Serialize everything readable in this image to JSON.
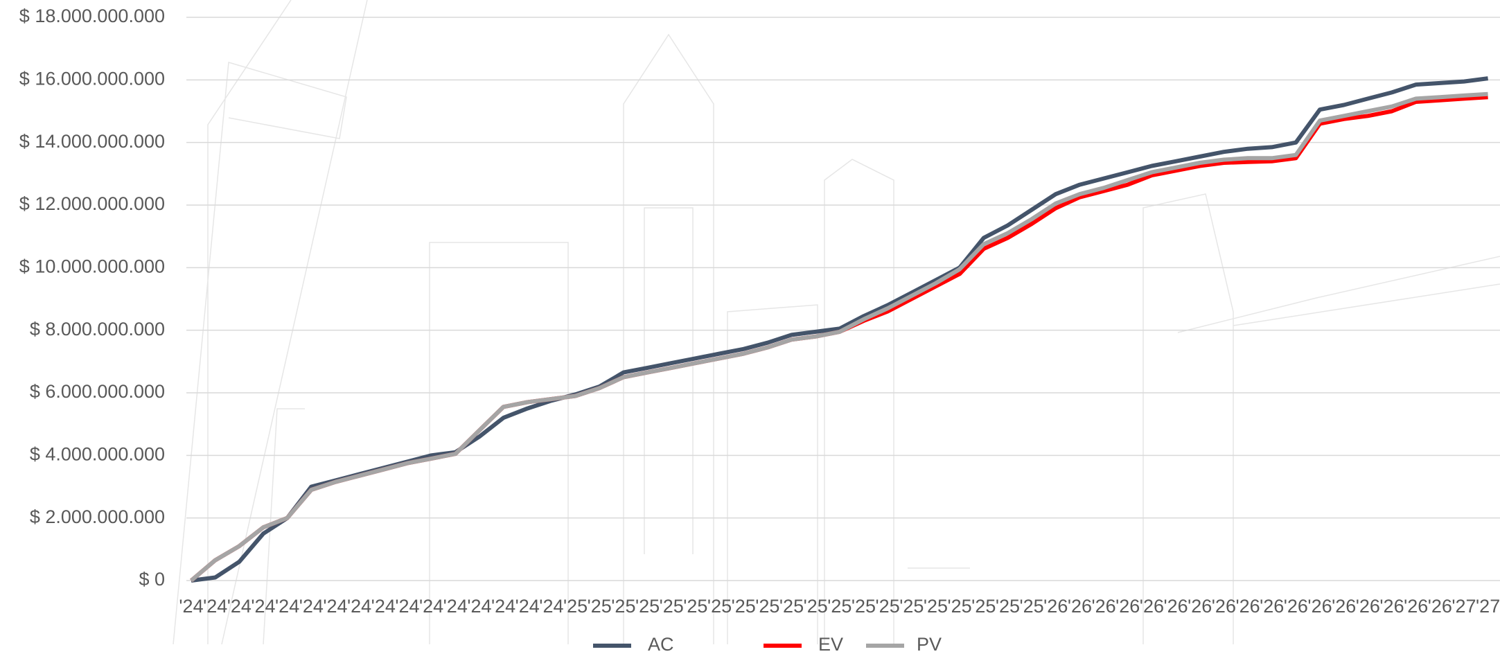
{
  "chart_data": {
    "type": "line",
    "categories": [
      "'24",
      "'24",
      "'24",
      "'24",
      "'24",
      "'24",
      "'24",
      "'24",
      "'24",
      "'24",
      "'24",
      "'24",
      "'24",
      "'24",
      "'24",
      "'24",
      "'25",
      "'25",
      "'25",
      "'25",
      "'25",
      "'25",
      "'25",
      "'25",
      "'25",
      "'25",
      "'25",
      "'25",
      "'25",
      "'25",
      "'25",
      "'25",
      "'25",
      "'25",
      "'25",
      "'25",
      "'26",
      "'26",
      "'26",
      "'26",
      "'26",
      "'26",
      "'26",
      "'26",
      "'26",
      "'26",
      "'26",
      "'26",
      "'26",
      "'26",
      "'26",
      "'26",
      "'26",
      "'27",
      "'27"
    ],
    "series": [
      {
        "name": "AC",
        "color": "#44546a",
        "values": [
          0,
          100000000,
          600000000,
          1500000000,
          2000000000,
          3000000000,
          3200000000,
          3400000000,
          3600000000,
          3800000000,
          4000000000,
          4100000000,
          4600000000,
          5200000000,
          5500000000,
          5750000000,
          5950000000,
          6200000000,
          6650000000,
          6800000000,
          6950000000,
          7100000000,
          7250000000,
          7400000000,
          7600000000,
          7850000000,
          7950000000,
          8050000000,
          8450000000,
          8800000000,
          9200000000,
          9600000000,
          10000000000,
          10950000000,
          11350000000,
          11850000000,
          12350000000,
          12650000000,
          12850000000,
          13050000000,
          13250000000,
          13400000000,
          13550000000,
          13700000000,
          13800000000,
          13850000000,
          14000000000,
          15050000000,
          15200000000,
          15400000000,
          15600000000,
          15850000000,
          15900000000,
          15950000000,
          16050000000
        ]
      },
      {
        "name": "EV",
        "color": "#ff0000",
        "values": [
          0,
          650000000,
          1100000000,
          1700000000,
          2000000000,
          2900000000,
          3150000000,
          3350000000,
          3550000000,
          3750000000,
          3900000000,
          4050000000,
          4800000000,
          5550000000,
          5700000000,
          5800000000,
          5900000000,
          6150000000,
          6500000000,
          6650000000,
          6800000000,
          6950000000,
          7100000000,
          7250000000,
          7450000000,
          7700000000,
          7800000000,
          7950000000,
          8300000000,
          8600000000,
          9000000000,
          9400000000,
          9800000000,
          10600000000,
          10950000000,
          11400000000,
          11900000000,
          12250000000,
          12450000000,
          12650000000,
          12950000000,
          13100000000,
          13250000000,
          13350000000,
          13380000000,
          13400000000,
          13500000000,
          14600000000,
          14750000000,
          14850000000,
          15000000000,
          15300000000,
          15350000000,
          15400000000,
          15450000000
        ]
      },
      {
        "name": "PV",
        "color": "#a5a5a5",
        "values": [
          0,
          650000000,
          1100000000,
          1700000000,
          2000000000,
          2900000000,
          3150000000,
          3350000000,
          3550000000,
          3750000000,
          3900000000,
          4050000000,
          4800000000,
          5550000000,
          5700000000,
          5800000000,
          5900000000,
          6150000000,
          6500000000,
          6650000000,
          6800000000,
          6950000000,
          7100000000,
          7250000000,
          7450000000,
          7700000000,
          7800000000,
          7950000000,
          8350000000,
          8700000000,
          9100000000,
          9500000000,
          9950000000,
          10750000000,
          11100000000,
          11550000000,
          12050000000,
          12350000000,
          12550000000,
          12800000000,
          13050000000,
          13200000000,
          13350000000,
          13450000000,
          13500000000,
          13500000000,
          13600000000,
          14700000000,
          14850000000,
          15000000000,
          15150000000,
          15400000000,
          15450000000,
          15500000000,
          15550000000
        ]
      }
    ],
    "ylim": [
      0,
      18000000000
    ],
    "yticks": [
      {
        "value": 0,
        "label": "$ 0"
      },
      {
        "value": 2000000000,
        "label": "$ 2.000.000.000"
      },
      {
        "value": 4000000000,
        "label": "$ 4.000.000.000"
      },
      {
        "value": 6000000000,
        "label": "$ 6.000.000.000"
      },
      {
        "value": 8000000000,
        "label": "$ 8.000.000.000"
      },
      {
        "value": 10000000000,
        "label": "$ 10.000.000.000"
      },
      {
        "value": 12000000000,
        "label": "$ 12.000.000.000"
      },
      {
        "value": 14000000000,
        "label": "$ 14.000.000.000"
      },
      {
        "value": 16000000000,
        "label": "$ 16.000.000.000"
      },
      {
        "value": 18000000000,
        "label": "$ 18.000.000.000"
      }
    ],
    "grid": true,
    "legend": "bottom"
  }
}
